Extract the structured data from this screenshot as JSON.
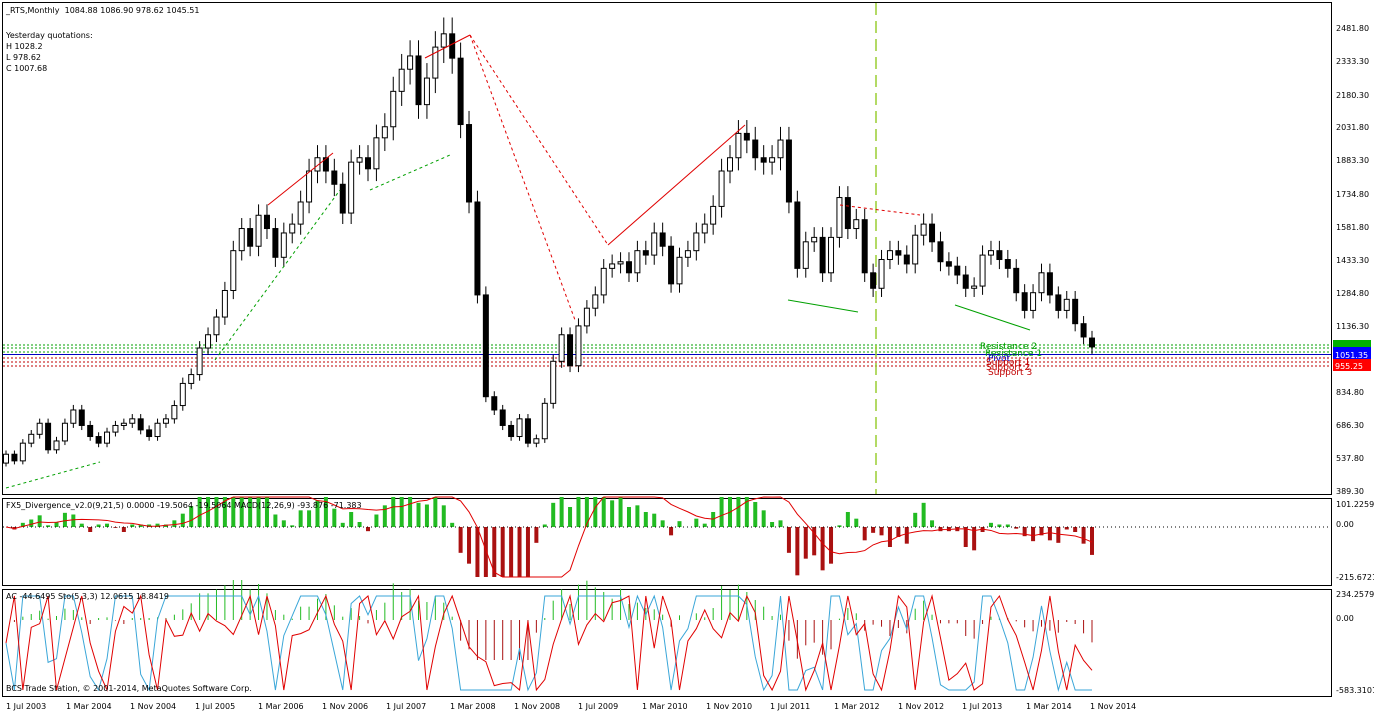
{
  "header": {
    "title": "_RTS,Monthly",
    "ohlc": "1084.88 1086.90 978.62 1045.51"
  },
  "yesterday": {
    "title": "Yesterday quotations:",
    "h": "H 1028.2",
    "l": "L 978.62",
    "c": "C 1007.68"
  },
  "price_axis": [
    "2481.80",
    "2333.30",
    "2180.30",
    "2031.80",
    "1883.30",
    "1734.80",
    "1581.80",
    "1433.30",
    "1284.80",
    "1136.30",
    "834.80",
    "686.30",
    "537.80",
    "389.30"
  ],
  "price_tags": {
    "top": "1051.35",
    "bottom": "955.25"
  },
  "levels": [
    "Resistance 2",
    "Resistance 1",
    "Pivot",
    "Support 1",
    "Support 2",
    "Support 3"
  ],
  "indicator1": {
    "label": "FX5_Divergence_v2.0(9,21,5) 0.0000 -19.5064 -19.5064  MACD(12,26,9) -93.876 -71.383",
    "axis": [
      "101.2259",
      "0.00",
      "-215.6721"
    ]
  },
  "indicator2": {
    "label": "AC -44.6495  Sto(5,3,3) 12.0615 18.8419",
    "axis": [
      "234.2579",
      "0.00",
      "-583.3101"
    ]
  },
  "copyright": "BCS Trade Station, © 2001-2014, MetaQuotes Software Corp.",
  "time_axis": [
    "1 Jul 2003",
    "1 Mar 2004",
    "1 Nov 2004",
    "1 Jul 2005",
    "1 Mar 2006",
    "1 Nov 2006",
    "1 Jul 2007",
    "1 Mar 2008",
    "1 Nov 2008",
    "1 Jul 2009",
    "1 Mar 2010",
    "1 Nov 2010",
    "1 Jul 2011",
    "1 Mar 2012",
    "1 Nov 2012",
    "1 Jul 2013",
    "1 Mar 2014",
    "1 Nov 2014"
  ],
  "colors": {
    "bull": "#ffffff",
    "bear": "#000000",
    "up": "#00b000",
    "down": "#b00000",
    "macd_signal": "#e00000",
    "sto_main": "#3aa6d8",
    "sto_signal": "#e00000",
    "vline": "#9acd32"
  },
  "chart_data": {
    "type": "candlestick",
    "title": "_RTS,Monthly",
    "ylim": [
      389.3,
      2481.8
    ],
    "x_start": "1 Jul 2003",
    "x_end": "1 Nov 2014",
    "close": [
      560,
      530,
      610,
      650,
      700,
      580,
      620,
      700,
      760,
      690,
      640,
      610,
      660,
      690,
      700,
      720,
      670,
      640,
      700,
      720,
      780,
      880,
      920,
      1040,
      1100,
      1180,
      1300,
      1480,
      1580,
      1500,
      1640,
      1580,
      1450,
      1560,
      1600,
      1700,
      1840,
      1900,
      1840,
      1780,
      1650,
      1880,
      1900,
      1850,
      1990,
      2040,
      2200,
      2300,
      2360,
      2140,
      2260,
      2400,
      2460,
      2350,
      2050,
      1700,
      1280,
      820,
      760,
      690,
      640,
      720,
      610,
      630,
      790,
      980,
      1100,
      960,
      1140,
      1220,
      1280,
      1400,
      1420,
      1430,
      1380,
      1480,
      1460,
      1560,
      1500,
      1330,
      1450,
      1480,
      1560,
      1600,
      1680,
      1840,
      1900,
      2010,
      1980,
      1900,
      1880,
      1900,
      1980,
      1700,
      1400,
      1520,
      1540,
      1380,
      1540,
      1720,
      1580,
      1620,
      1380,
      1310,
      1440,
      1480,
      1460,
      1420,
      1550,
      1600,
      1520,
      1430,
      1410,
      1370,
      1310,
      1320,
      1460,
      1480,
      1440,
      1400,
      1290,
      1210,
      1290,
      1380,
      1280,
      1210,
      1260,
      1150,
      1090,
      1045
    ],
    "open": [
      520,
      560,
      530,
      610,
      650,
      700,
      580,
      620,
      700,
      760,
      690,
      640,
      610,
      660,
      690,
      700,
      720,
      670,
      640,
      700,
      720,
      780,
      880,
      920,
      1040,
      1100,
      1180,
      1300,
      1480,
      1580,
      1500,
      1640,
      1580,
      1450,
      1560,
      1600,
      1700,
      1840,
      1900,
      1840,
      1780,
      1650,
      1880,
      1900,
      1850,
      1990,
      2040,
      2200,
      2300,
      2360,
      2140,
      2260,
      2400,
      2460,
      2350,
      2050,
      1700,
      1280,
      820,
      760,
      690,
      640,
      720,
      610,
      630,
      790,
      980,
      1100,
      960,
      1140,
      1220,
      1280,
      1400,
      1420,
      1430,
      1380,
      1480,
      1460,
      1560,
      1500,
      1330,
      1450,
      1480,
      1560,
      1600,
      1680,
      1840,
      1900,
      2010,
      1980,
      1900,
      1880,
      1900,
      1980,
      1700,
      1400,
      1520,
      1540,
      1380,
      1540,
      1720,
      1580,
      1620,
      1380,
      1310,
      1440,
      1480,
      1460,
      1420,
      1550,
      1600,
      1520,
      1430,
      1410,
      1370,
      1310,
      1320,
      1460,
      1480,
      1440,
      1400,
      1290,
      1210,
      1290,
      1380,
      1280,
      1210,
      1260,
      1150,
      1085
    ]
  }
}
